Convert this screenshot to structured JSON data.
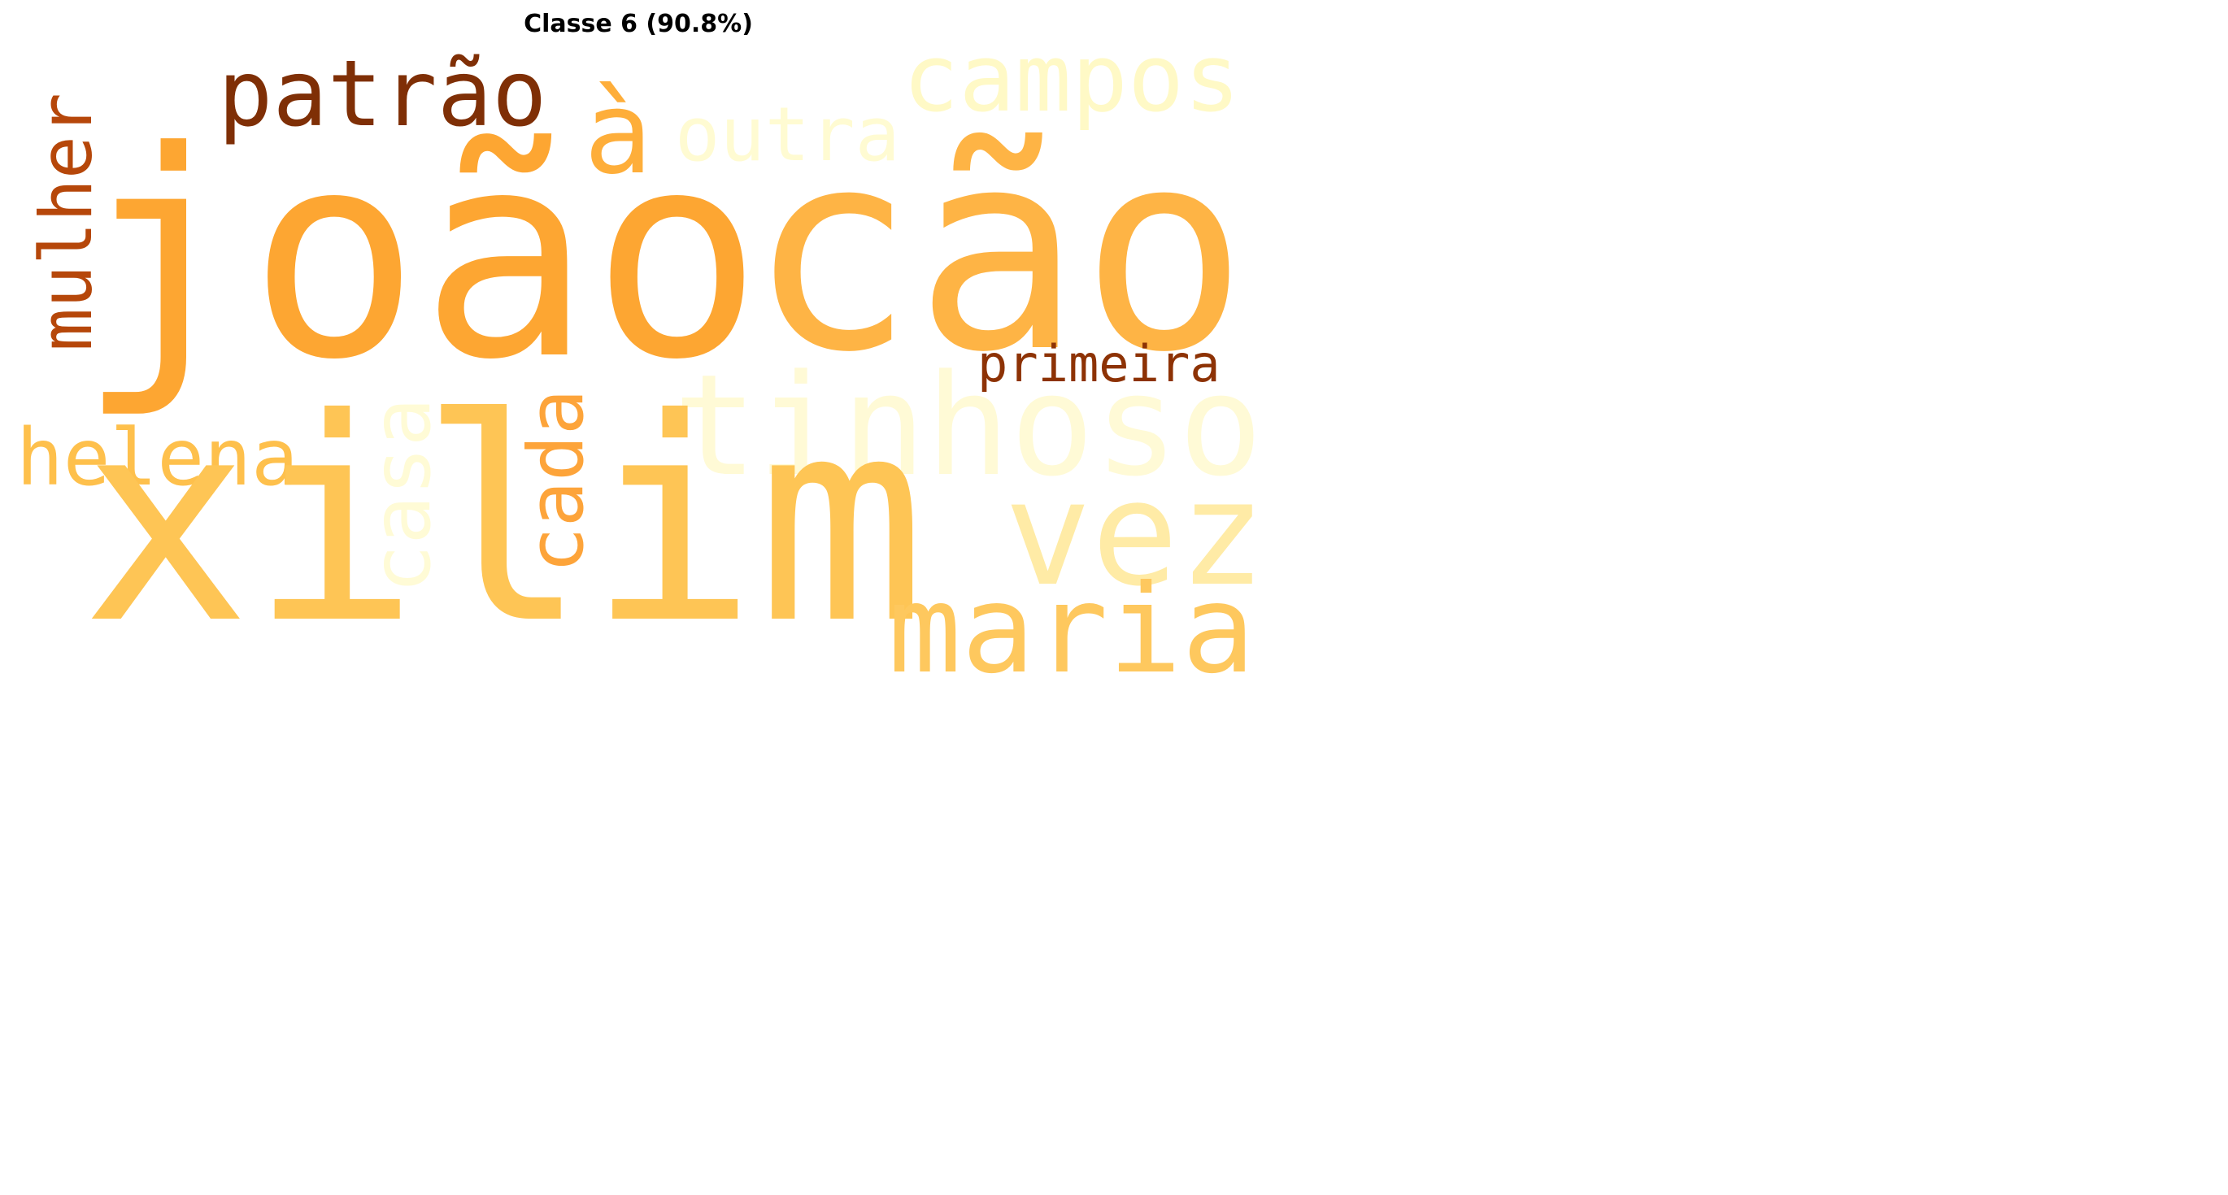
{
  "title": "Classe 6 (90.8%)",
  "words": {
    "joao": {
      "text": "joão",
      "color": "#fda632"
    },
    "cao": {
      "text": "cão",
      "color": "#feb445"
    },
    "xilim": {
      "text": "xilim",
      "color": "#fec555"
    },
    "tinhoso": {
      "text": "tinhoso",
      "color": "#fffad6"
    },
    "patrao": {
      "text": "patrão",
      "color": "#7f2f06"
    },
    "campos": {
      "text": "campos",
      "color": "#fff9c6"
    },
    "a_grave": {
      "text": "à",
      "color": "#feae3a"
    },
    "outra": {
      "text": "outra",
      "color": "#fffbd2"
    },
    "mulher": {
      "text": "mulher",
      "color": "#b6470a"
    },
    "primeira": {
      "text": "primeira",
      "color": "#8d3205"
    },
    "helena": {
      "text": "helena",
      "color": "#fec04c"
    },
    "casa": {
      "text": "casa",
      "color": "#fffbd6"
    },
    "cada": {
      "text": "cada",
      "color": "#fda43a"
    },
    "vez": {
      "text": "vez",
      "color": "#ffeba6"
    },
    "maria": {
      "text": "maria",
      "color": "#fec85e"
    }
  }
}
